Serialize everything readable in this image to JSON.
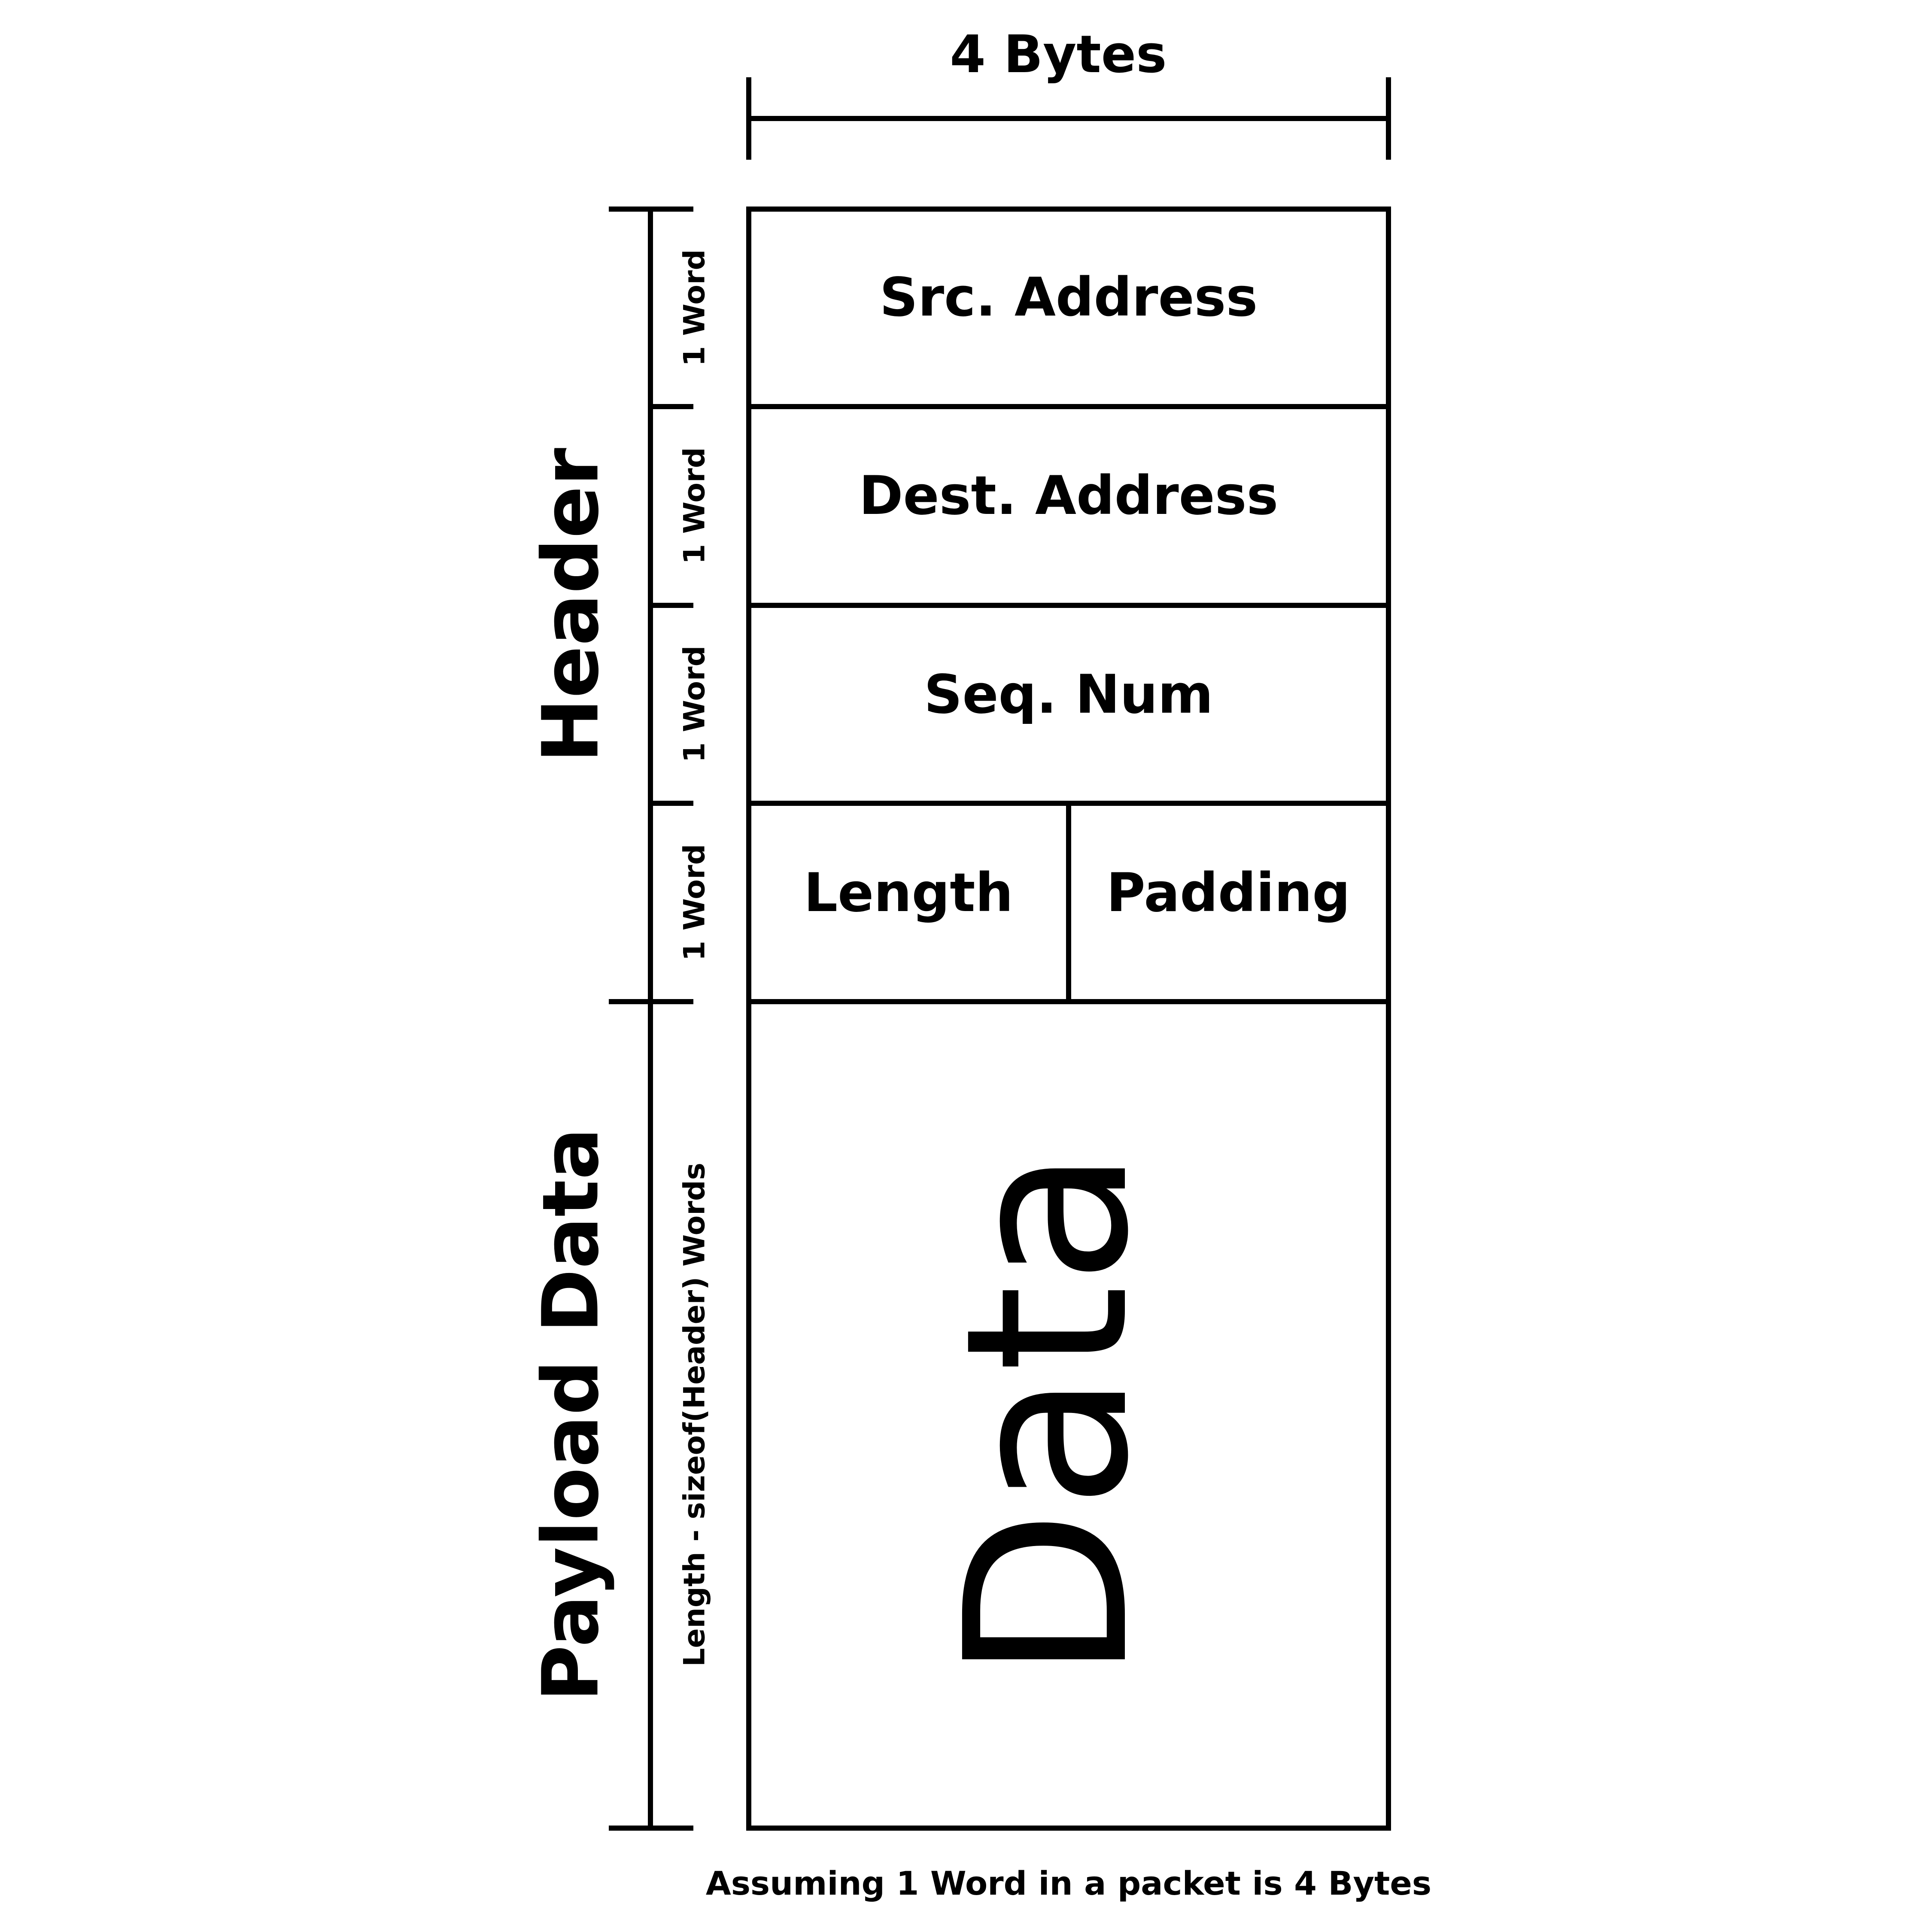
{
  "width_label": "4 Bytes",
  "header": {
    "label": "Header",
    "word_labels": [
      "1 Word",
      "1 Word",
      "1 Word",
      "1 Word"
    ]
  },
  "payload": {
    "label": "Payload Data",
    "size_label": "Length - sizeof(Header) Words"
  },
  "fields": {
    "src_address": "Src. Address",
    "dest_address": "Dest. Address",
    "seq_num": "Seq. Num",
    "length": "Length",
    "padding": "Padding",
    "data": "Data"
  },
  "footnote": "Assuming 1 Word in a packet is 4 Bytes",
  "colors": {
    "stroke": "#000000",
    "background": "#ffffff"
  }
}
